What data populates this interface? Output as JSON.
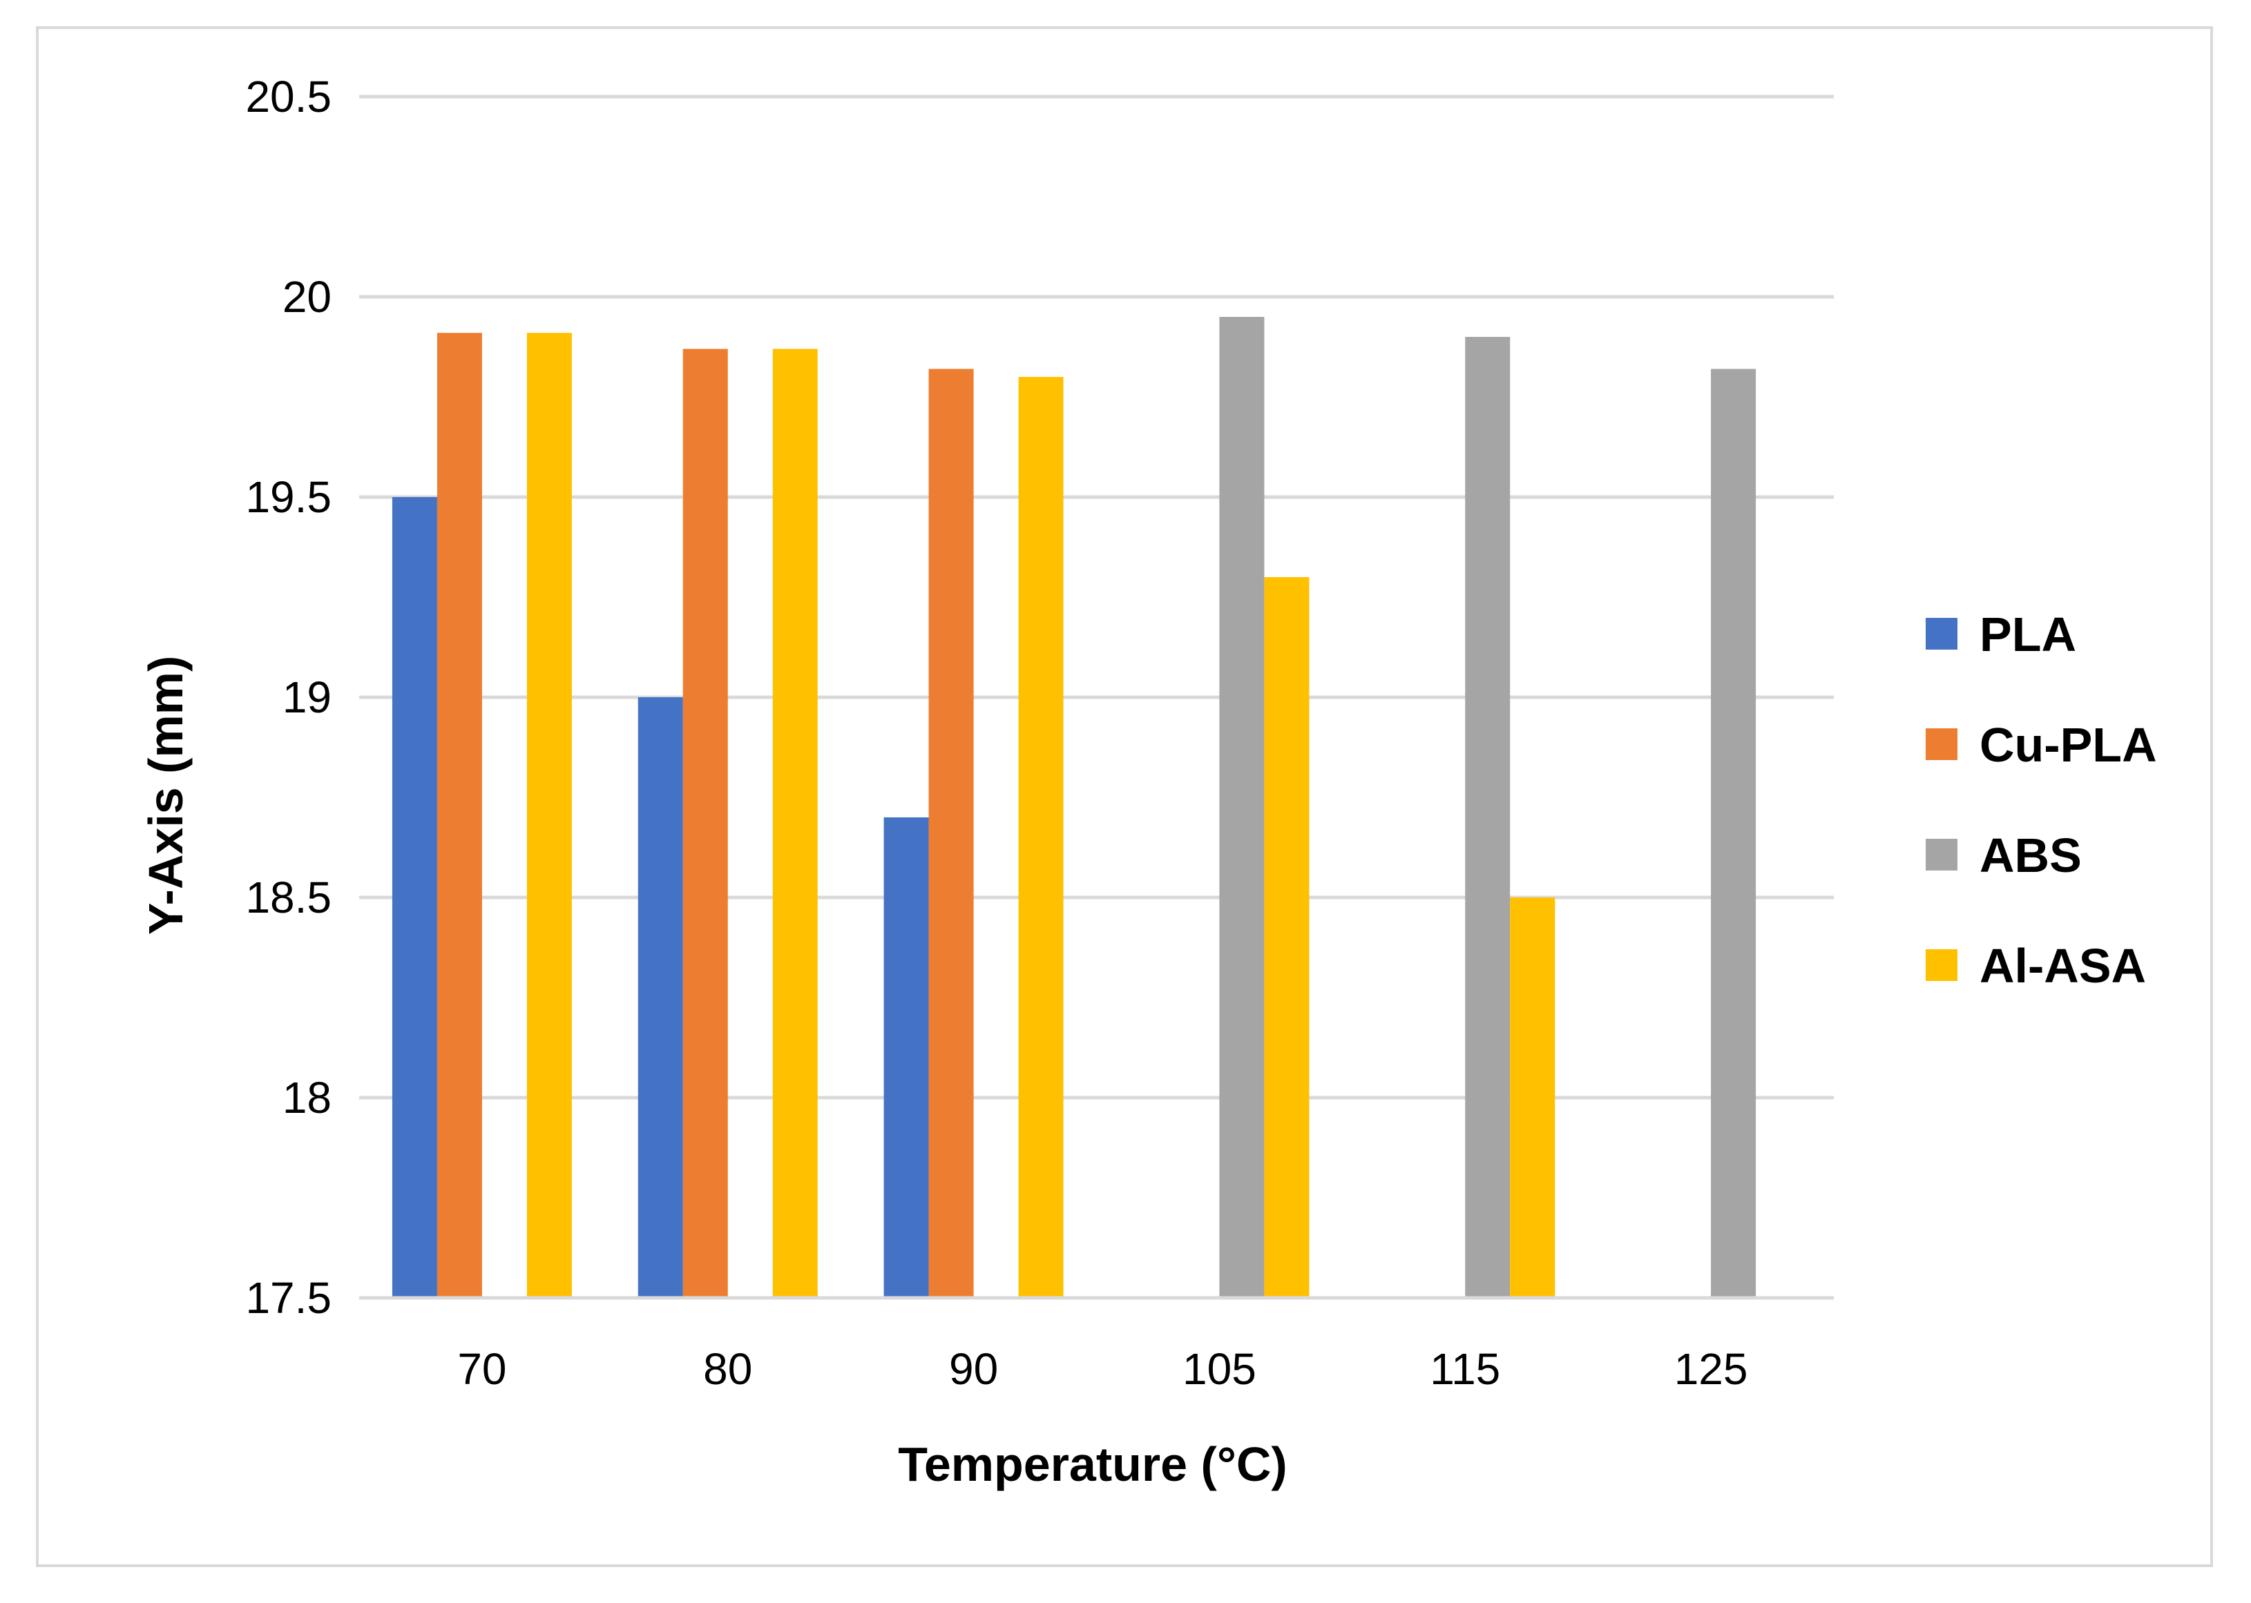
{
  "chart_data": {
    "type": "bar",
    "title": "",
    "xlabel": "Temperature (°C)",
    "ylabel": "Y-Axis (mm)",
    "categories": [
      "70",
      "80",
      "90",
      "105",
      "115",
      "125"
    ],
    "ylim": [
      17.5,
      20.5
    ],
    "yticks": [
      17.5,
      18,
      18.5,
      19,
      19.5,
      20,
      20.5
    ],
    "ytick_labels": [
      "17.5",
      "18",
      "18.5",
      "19",
      "19.5",
      "20",
      "20.5"
    ],
    "grid": true,
    "legend_position": "right",
    "series": [
      {
        "name": "PLA",
        "color": "#4472c4",
        "values": [
          19.5,
          19.0,
          18.7,
          null,
          null,
          null
        ]
      },
      {
        "name": "Cu-PLA",
        "color": "#ed7d31",
        "values": [
          19.91,
          19.87,
          19.82,
          null,
          null,
          null
        ]
      },
      {
        "name": "ABS",
        "color": "#a5a5a5",
        "values": [
          null,
          null,
          null,
          19.95,
          19.9,
          19.82
        ]
      },
      {
        "name": "Al-ASA",
        "color": "#ffc000",
        "values": [
          19.91,
          19.87,
          19.8,
          19.3,
          18.5,
          null
        ]
      }
    ]
  }
}
